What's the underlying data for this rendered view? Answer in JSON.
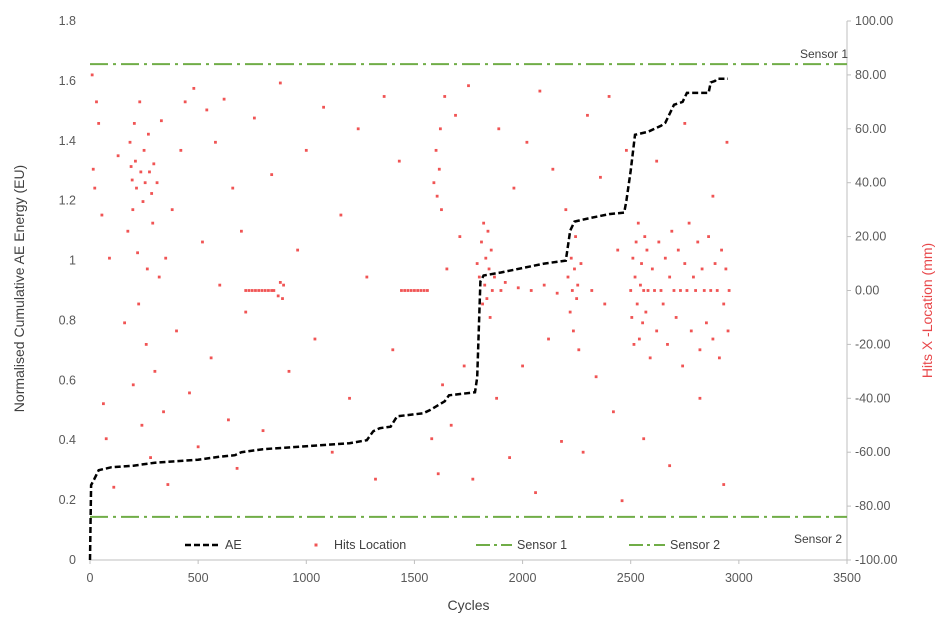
{
  "chart_data": {
    "type": "scatter",
    "title": "",
    "xlabel": "Cycles",
    "ylabel": "Normalised Cumulative AE Energy (EU)",
    "y2label": "Hits X -Location (mm)",
    "xlim": [
      0,
      3500
    ],
    "ylim": [
      0,
      1.8
    ],
    "y2lim": [
      -100,
      100
    ],
    "xticks": [
      "0",
      "500",
      "1000",
      "1500",
      "2000",
      "2500",
      "3000",
      "3500"
    ],
    "yticks": [
      "0",
      "0.2",
      "0.4",
      "0.6",
      "0.8",
      "1",
      "1.2",
      "1.4",
      "1.6",
      "1.8"
    ],
    "y2ticks": [
      "-100.00",
      "-80.00",
      "-60.00",
      "-40.00",
      "-20.00",
      "0.00",
      "20.00",
      "40.00",
      "60.00",
      "80.00",
      "100.00"
    ],
    "grid": false,
    "legend_position": "bottom",
    "legend": [
      "AE",
      "Hits Location",
      "Sensor 1",
      "Sensor 2"
    ],
    "annotations": [
      "Sensor 1",
      "Sensor 2"
    ],
    "series": [
      {
        "name": "AE",
        "axis": "left",
        "style": "dashed",
        "color": "#000000",
        "x": [
          0,
          5,
          20,
          40,
          100,
          200,
          300,
          400,
          500,
          600,
          670,
          700,
          800,
          900,
          1000,
          1100,
          1200,
          1280,
          1310,
          1340,
          1390,
          1420,
          1540,
          1570,
          1640,
          1660,
          1780,
          1790,
          1805,
          1820,
          1900,
          2000,
          2100,
          2200,
          2220,
          2240,
          2300,
          2400,
          2470,
          2480,
          2500,
          2520,
          2580,
          2640,
          2660,
          2700,
          2740,
          2760,
          2860,
          2870,
          2890,
          2900,
          2950
        ],
        "y": [
          0.0,
          0.25,
          0.27,
          0.3,
          0.31,
          0.315,
          0.325,
          0.33,
          0.335,
          0.345,
          0.35,
          0.36,
          0.37,
          0.375,
          0.38,
          0.385,
          0.39,
          0.4,
          0.43,
          0.44,
          0.445,
          0.48,
          0.49,
          0.5,
          0.53,
          0.55,
          0.56,
          0.61,
          0.93,
          0.95,
          0.96,
          0.975,
          0.99,
          1.0,
          1.1,
          1.13,
          1.14,
          1.155,
          1.16,
          1.2,
          1.3,
          1.42,
          1.43,
          1.45,
          1.46,
          1.52,
          1.53,
          1.56,
          1.56,
          1.595,
          1.6,
          1.607,
          1.607
        ]
      },
      {
        "name": "Hits Location",
        "axis": "right",
        "style": "markers",
        "color": "#f05454",
        "points": [
          [
            10,
            80
          ],
          [
            15,
            45
          ],
          [
            22,
            38
          ],
          [
            30,
            70
          ],
          [
            40,
            62
          ],
          [
            55,
            28
          ],
          [
            62,
            -42
          ],
          [
            75,
            -55
          ],
          [
            90,
            12
          ],
          [
            110,
            -73
          ],
          [
            130,
            50
          ],
          [
            160,
            -12
          ],
          [
            175,
            22
          ],
          [
            185,
            55
          ],
          [
            190,
            46
          ],
          [
            195,
            41
          ],
          [
            198,
            30
          ],
          [
            200,
            -35
          ],
          [
            205,
            62
          ],
          [
            210,
            48
          ],
          [
            215,
            38
          ],
          [
            220,
            14
          ],
          [
            225,
            -5
          ],
          [
            230,
            70
          ],
          [
            235,
            44
          ],
          [
            240,
            -50
          ],
          [
            245,
            33
          ],
          [
            250,
            52
          ],
          [
            255,
            40
          ],
          [
            260,
            -20
          ],
          [
            265,
            8
          ],
          [
            270,
            58
          ],
          [
            275,
            44
          ],
          [
            280,
            -62
          ],
          [
            285,
            36
          ],
          [
            290,
            25
          ],
          [
            295,
            47
          ],
          [
            300,
            -30
          ],
          [
            310,
            40
          ],
          [
            320,
            5
          ],
          [
            330,
            63
          ],
          [
            340,
            -45
          ],
          [
            350,
            12
          ],
          [
            360,
            -72
          ],
          [
            380,
            30
          ],
          [
            400,
            -15
          ],
          [
            420,
            52
          ],
          [
            440,
            70
          ],
          [
            460,
            -38
          ],
          [
            480,
            75
          ],
          [
            500,
            -58
          ],
          [
            520,
            18
          ],
          [
            540,
            67
          ],
          [
            560,
            -25
          ],
          [
            580,
            55
          ],
          [
            600,
            2
          ],
          [
            620,
            71
          ],
          [
            640,
            -48
          ],
          [
            660,
            38
          ],
          [
            680,
            -66
          ],
          [
            700,
            22
          ],
          [
            720,
            -8
          ],
          [
            760,
            64
          ],
          [
            800,
            -52
          ],
          [
            840,
            43
          ],
          [
            880,
            77
          ],
          [
            920,
            -30
          ],
          [
            960,
            15
          ],
          [
            1000,
            52
          ],
          [
            1040,
            -18
          ],
          [
            1080,
            68
          ],
          [
            1120,
            -60
          ],
          [
            1160,
            28
          ],
          [
            1200,
            -40
          ],
          [
            1240,
            60
          ],
          [
            1280,
            5
          ],
          [
            1320,
            -70
          ],
          [
            1360,
            72
          ],
          [
            1400,
            -22
          ],
          [
            1430,
            48
          ],
          [
            720,
            0
          ],
          [
            735,
            0
          ],
          [
            750,
            0
          ],
          [
            765,
            0
          ],
          [
            780,
            0
          ],
          [
            795,
            0
          ],
          [
            810,
            0
          ],
          [
            825,
            0
          ],
          [
            840,
            0
          ],
          [
            850,
            0
          ],
          [
            870,
            -2
          ],
          [
            880,
            3
          ],
          [
            890,
            -3
          ],
          [
            895,
            2
          ],
          [
            1440,
            0
          ],
          [
            1455,
            0
          ],
          [
            1470,
            0
          ],
          [
            1485,
            0
          ],
          [
            1500,
            0
          ],
          [
            1515,
            0
          ],
          [
            1530,
            0
          ],
          [
            1545,
            0
          ],
          [
            1560,
            0
          ],
          [
            1580,
            -55
          ],
          [
            1590,
            40
          ],
          [
            1600,
            52
          ],
          [
            1605,
            35
          ],
          [
            1610,
            -68
          ],
          [
            1615,
            45
          ],
          [
            1620,
            60
          ],
          [
            1625,
            30
          ],
          [
            1630,
            -35
          ],
          [
            1640,
            72
          ],
          [
            1650,
            8
          ],
          [
            1670,
            -50
          ],
          [
            1690,
            65
          ],
          [
            1710,
            20
          ],
          [
            1730,
            -28
          ],
          [
            1750,
            76
          ],
          [
            1770,
            -70
          ],
          [
            1790,
            10
          ],
          [
            1800,
            5
          ],
          [
            1810,
            18
          ],
          [
            1815,
            -5
          ],
          [
            1820,
            25
          ],
          [
            1825,
            2
          ],
          [
            1830,
            12
          ],
          [
            1835,
            -3
          ],
          [
            1840,
            22
          ],
          [
            1845,
            8
          ],
          [
            1850,
            -10
          ],
          [
            1855,
            15
          ],
          [
            1860,
            0
          ],
          [
            1870,
            5
          ],
          [
            1880,
            -40
          ],
          [
            1890,
            60
          ],
          [
            1900,
            0
          ],
          [
            1920,
            3
          ],
          [
            1940,
            -62
          ],
          [
            1960,
            38
          ],
          [
            1980,
            1
          ],
          [
            2000,
            -28
          ],
          [
            2020,
            55
          ],
          [
            2040,
            0
          ],
          [
            2060,
            -75
          ],
          [
            2080,
            74
          ],
          [
            2100,
            2
          ],
          [
            2120,
            -18
          ],
          [
            2140,
            45
          ],
          [
            2160,
            -1
          ],
          [
            2180,
            -56
          ],
          [
            2200,
            30
          ],
          [
            2210,
            5
          ],
          [
            2220,
            -8
          ],
          [
            2225,
            12
          ],
          [
            2230,
            0
          ],
          [
            2235,
            -15
          ],
          [
            2240,
            8
          ],
          [
            2245,
            20
          ],
          [
            2250,
            -3
          ],
          [
            2255,
            2
          ],
          [
            2260,
            -22
          ],
          [
            2270,
            10
          ],
          [
            2280,
            -60
          ],
          [
            2300,
            65
          ],
          [
            2320,
            0
          ],
          [
            2340,
            -32
          ],
          [
            2360,
            42
          ],
          [
            2380,
            -5
          ],
          [
            2400,
            72
          ],
          [
            2420,
            -45
          ],
          [
            2440,
            15
          ],
          [
            2460,
            -78
          ],
          [
            2480,
            52
          ],
          [
            2500,
            0
          ],
          [
            2505,
            -10
          ],
          [
            2510,
            12
          ],
          [
            2515,
            -20
          ],
          [
            2520,
            5
          ],
          [
            2525,
            18
          ],
          [
            2530,
            -5
          ],
          [
            2535,
            25
          ],
          [
            2540,
            -18
          ],
          [
            2545,
            2
          ],
          [
            2550,
            10
          ],
          [
            2555,
            -12
          ],
          [
            2560,
            0
          ],
          [
            2565,
            20
          ],
          [
            2570,
            -8
          ],
          [
            2575,
            15
          ],
          [
            2580,
            0
          ],
          [
            2590,
            -25
          ],
          [
            2600,
            8
          ],
          [
            2610,
            0
          ],
          [
            2620,
            -15
          ],
          [
            2630,
            18
          ],
          [
            2640,
            0
          ],
          [
            2650,
            -5
          ],
          [
            2660,
            12
          ],
          [
            2670,
            -20
          ],
          [
            2680,
            5
          ],
          [
            2690,
            22
          ],
          [
            2700,
            0
          ],
          [
            2710,
            -10
          ],
          [
            2720,
            15
          ],
          [
            2730,
            0
          ],
          [
            2740,
            -28
          ],
          [
            2750,
            10
          ],
          [
            2760,
            0
          ],
          [
            2770,
            25
          ],
          [
            2780,
            -15
          ],
          [
            2790,
            5
          ],
          [
            2800,
            0
          ],
          [
            2810,
            18
          ],
          [
            2820,
            -22
          ],
          [
            2830,
            8
          ],
          [
            2840,
            0
          ],
          [
            2850,
            -12
          ],
          [
            2860,
            20
          ],
          [
            2870,
            0
          ],
          [
            2880,
            -18
          ],
          [
            2890,
            10
          ],
          [
            2900,
            0
          ],
          [
            2910,
            -25
          ],
          [
            2920,
            15
          ],
          [
            2930,
            -5
          ],
          [
            2940,
            8
          ],
          [
            2950,
            -15
          ],
          [
            2955,
            0
          ],
          [
            2560,
            -55
          ],
          [
            2620,
            48
          ],
          [
            2680,
            -65
          ],
          [
            2750,
            62
          ],
          [
            2820,
            -40
          ],
          [
            2880,
            35
          ],
          [
            2930,
            -72
          ],
          [
            2945,
            55
          ]
        ]
      },
      {
        "name": "Sensor 1",
        "axis": "right",
        "style": "dash-dot",
        "color": "#70ad47",
        "y": 84
      },
      {
        "name": "Sensor 2",
        "axis": "right",
        "style": "dash-dot",
        "color": "#70ad47",
        "y": -84
      }
    ]
  }
}
